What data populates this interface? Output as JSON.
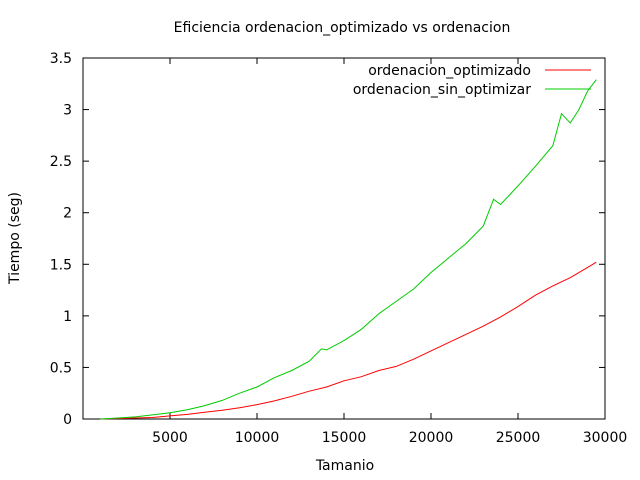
{
  "chart_data": {
    "type": "line",
    "title": "Eficiencia ordenacion_optimizado vs ordenacion",
    "xlabel": "Tamanio",
    "ylabel": "Tiempo (seg)",
    "xlim": [
      0,
      30000
    ],
    "ylim": [
      0,
      3.5
    ],
    "xticks": [
      5000,
      10000,
      15000,
      20000,
      25000,
      30000
    ],
    "xtick_labels": [
      "5000",
      "10000",
      "15000",
      "20000",
      "25000",
      "30000"
    ],
    "yticks": [
      0,
      0.5,
      1,
      1.5,
      2,
      2.5,
      3,
      3.5
    ],
    "ytick_labels": [
      "0",
      "0.5",
      "1",
      "1.5",
      "2",
      "2.5",
      "3",
      "3.5"
    ],
    "grid": false,
    "legend_position": "top-right",
    "series": [
      {
        "name": "ordenacion_optimizado",
        "color": "#ff0000",
        "x": [
          1000,
          2000,
          3000,
          4000,
          5000,
          6000,
          7000,
          8000,
          9000,
          10000,
          11000,
          12000,
          13000,
          14000,
          15000,
          16000,
          17000,
          18000,
          19000,
          20000,
          21000,
          22000,
          23000,
          24000,
          25000,
          26000,
          27000,
          28000,
          29000,
          29500
        ],
        "values": [
          0.0,
          0.005,
          0.01,
          0.015,
          0.03,
          0.045,
          0.065,
          0.085,
          0.11,
          0.14,
          0.175,
          0.22,
          0.27,
          0.31,
          0.37,
          0.41,
          0.47,
          0.51,
          0.58,
          0.66,
          0.74,
          0.82,
          0.9,
          0.99,
          1.09,
          1.2,
          1.29,
          1.37,
          1.47,
          1.52
        ]
      },
      {
        "name": "ordenacion_sin_optimizar",
        "color": "#00cc00",
        "x": [
          1000,
          2000,
          3000,
          4000,
          5000,
          6000,
          7000,
          8000,
          9000,
          10000,
          11000,
          12000,
          13000,
          13700,
          14000,
          15000,
          16000,
          17000,
          18000,
          19000,
          20000,
          21000,
          22000,
          23000,
          23600,
          24000,
          25000,
          26000,
          27000,
          27500,
          28000,
          28500,
          29000,
          29500
        ],
        "values": [
          0.0,
          0.01,
          0.02,
          0.04,
          0.06,
          0.09,
          0.13,
          0.18,
          0.25,
          0.31,
          0.4,
          0.47,
          0.56,
          0.68,
          0.67,
          0.76,
          0.87,
          1.02,
          1.14,
          1.26,
          1.42,
          1.56,
          1.7,
          1.87,
          2.13,
          2.08,
          2.26,
          2.45,
          2.65,
          2.96,
          2.87,
          3.0,
          3.18,
          3.29
        ]
      }
    ]
  }
}
